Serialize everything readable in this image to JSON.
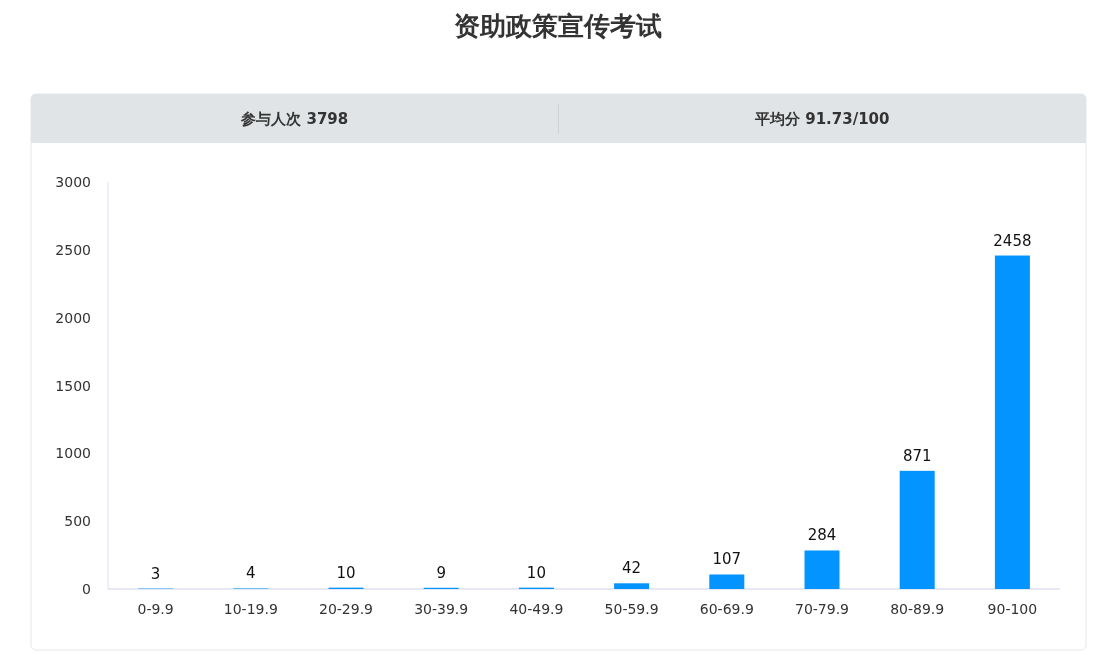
{
  "chart_data": {
    "type": "bar",
    "title": "资助政策宣传考试",
    "annotations": [
      "参与人次 3798",
      "平均分 91.73/100"
    ],
    "categories": [
      "0-9.9",
      "10-19.9",
      "20-29.9",
      "30-39.9",
      "40-49.9",
      "50-59.9",
      "60-69.9",
      "70-79.9",
      "80-89.9",
      "90-100"
    ],
    "values": [
      3,
      4,
      10,
      9,
      10,
      42,
      107,
      284,
      871,
      2458
    ],
    "color": "#0494ff",
    "ylim": [
      0,
      3000
    ],
    "yticks": [
      0,
      500,
      1000,
      1500,
      2000,
      2500,
      3000
    ],
    "data_labels": true,
    "grid": false
  }
}
